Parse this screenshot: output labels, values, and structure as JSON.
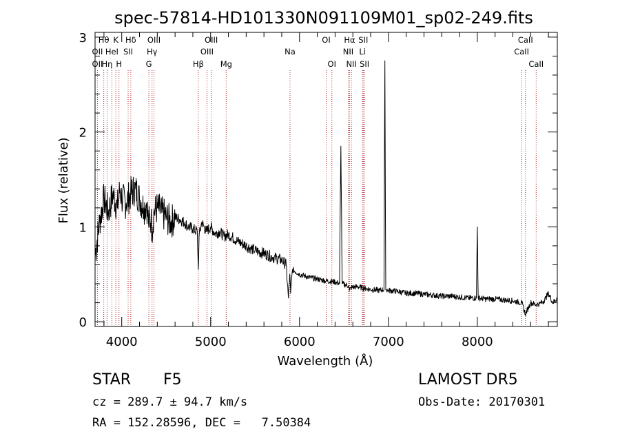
{
  "chart_data": {
    "type": "line",
    "title": "spec-57814-HD101330N091109M01_sp02-249.fits",
    "xlabel": "Wavelength (Å)",
    "ylabel": "Flux (relative)",
    "xlim": [
      3700,
      8900
    ],
    "ylim": [
      -0.05,
      3.05
    ],
    "x_ticks": [
      4000,
      5000,
      6000,
      7000,
      8000
    ],
    "y_ticks": [
      0,
      1,
      2,
      3
    ],
    "grid": false,
    "series": [
      {
        "line_color": "#000000",
        "x": [
          3700,
          3750,
          3800,
          3850,
          3900,
          3950,
          3980,
          4000,
          4050,
          4100,
          4150,
          4200,
          4250,
          4280,
          4300,
          4330,
          4340,
          4360,
          4400,
          4450,
          4500,
          4550,
          4600,
          4650,
          4700,
          4750,
          4800,
          4850,
          4861,
          4870,
          4900,
          4950,
          5000,
          5050,
          5100,
          5150,
          5200,
          5300,
          5400,
          5500,
          5600,
          5700,
          5800,
          5850,
          5875,
          5890,
          5900,
          5920,
          6000,
          6100,
          6200,
          6300,
          6400,
          6450,
          6465,
          6480,
          6550,
          6563,
          6580,
          6650,
          6700,
          6800,
          6900,
          6950,
          6960,
          6970,
          7000,
          7100,
          7200,
          7300,
          7400,
          7500,
          7600,
          7700,
          7800,
          7900,
          7990,
          8000,
          8010,
          8100,
          8200,
          8300,
          8400,
          8500,
          8540,
          8600,
          8660,
          8700,
          8750,
          8800,
          8850,
          8900
        ],
        "y": [
          0.7,
          1.05,
          1.3,
          1.15,
          1.35,
          1.2,
          1.4,
          1.3,
          1.25,
          1.35,
          1.4,
          1.3,
          1.2,
          1.25,
          1.05,
          1.1,
          0.95,
          1.15,
          1.2,
          1.15,
          1.1,
          1.05,
          1.1,
          1.08,
          1.05,
          1.0,
          0.98,
          0.95,
          0.55,
          0.9,
          1.05,
          0.95,
          1.0,
          0.93,
          0.95,
          0.9,
          0.92,
          0.85,
          0.8,
          0.75,
          0.72,
          0.68,
          0.65,
          0.6,
          0.25,
          0.5,
          0.3,
          0.55,
          0.5,
          0.47,
          0.45,
          0.43,
          0.42,
          0.4,
          1.85,
          0.4,
          0.38,
          0.33,
          0.36,
          0.37,
          0.36,
          0.34,
          0.33,
          0.34,
          2.75,
          0.34,
          0.33,
          0.32,
          0.3,
          0.3,
          0.29,
          0.28,
          0.27,
          0.27,
          0.26,
          0.25,
          0.25,
          1.0,
          0.25,
          0.24,
          0.24,
          0.23,
          0.22,
          0.2,
          0.08,
          0.2,
          0.18,
          0.19,
          0.22,
          0.3,
          0.2,
          0.25
        ]
      }
    ],
    "spectral_lines": [
      {
        "label": "Hθ",
        "x": 3798,
        "row": 1
      },
      {
        "label": "OII",
        "x": 3727,
        "row": 2
      },
      {
        "label": "OII",
        "x": 3727,
        "row": 3
      },
      {
        "label": "Hη",
        "x": 3835,
        "row": 3
      },
      {
        "label": "HeI",
        "x": 3889,
        "row": 2
      },
      {
        "label": "K",
        "x": 3934,
        "row": 1
      },
      {
        "label": "H",
        "x": 3969,
        "row": 3
      },
      {
        "label": "Hδ",
        "x": 4102,
        "row": 1
      },
      {
        "label": "SII",
        "x": 4072,
        "row": 2
      },
      {
        "label": "OIII",
        "x": 4363,
        "row": 1
      },
      {
        "label": "Hγ",
        "x": 4341,
        "row": 2
      },
      {
        "label": "G",
        "x": 4305,
        "row": 3
      },
      {
        "label": "Hβ",
        "x": 4861,
        "row": 3
      },
      {
        "label": "OIII",
        "x": 5007,
        "row": 1
      },
      {
        "label": "OIII",
        "x": 4959,
        "row": 2
      },
      {
        "label": "Mg",
        "x": 5175,
        "row": 3
      },
      {
        "label": "Na",
        "x": 5893,
        "row": 2
      },
      {
        "label": "OI",
        "x": 6300,
        "row": 1
      },
      {
        "label": "OI",
        "x": 6364,
        "row": 3
      },
      {
        "label": "Hα",
        "x": 6563,
        "row": 1
      },
      {
        "label": "NII",
        "x": 6548,
        "row": 2
      },
      {
        "label": "NII",
        "x": 6584,
        "row": 3
      },
      {
        "label": "SII",
        "x": 6717,
        "row": 1
      },
      {
        "label": "Li",
        "x": 6708,
        "row": 2
      },
      {
        "label": "SII",
        "x": 6731,
        "row": 3
      },
      {
        "label": "CaII",
        "x": 8542,
        "row": 1
      },
      {
        "label": "CaII",
        "x": 8498,
        "row": 2
      },
      {
        "label": "CaII",
        "x": 8662,
        "row": 3
      }
    ],
    "spectral_line_color": "#b22222"
  },
  "info": {
    "object_class": "STAR",
    "subclass": "F5",
    "survey": "LAMOST DR5",
    "redshift": "cz = 289.7 ± 94.7 km/s",
    "obs_date": "Obs-Date: 20170301",
    "coordinates": "RA = 152.28596, DEC =   7.50384"
  }
}
